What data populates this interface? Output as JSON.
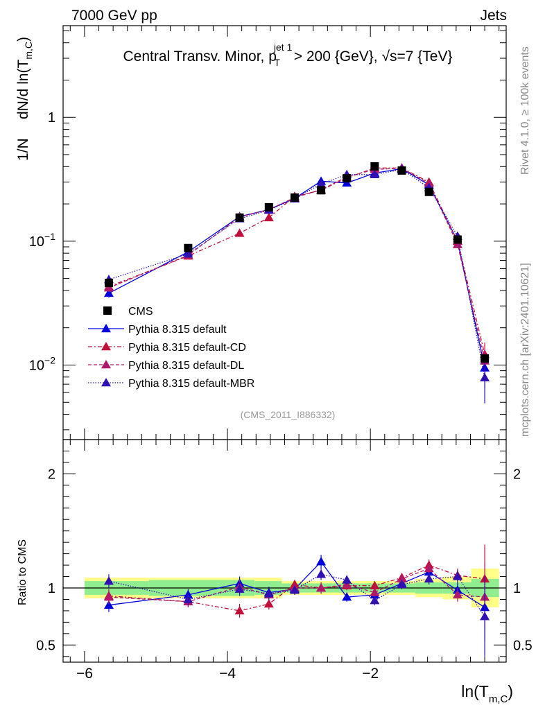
{
  "header": {
    "left": "7000 GeV pp",
    "right": "Jets",
    "title_main": "Central Transv. Minor, p",
    "title_sup": "jet 1",
    "title_sub": "T",
    "title_tail": " > 200 {GeV}, √s=7 {TeV}"
  },
  "side": {
    "rivet": "Rivet 4.1.0, ≥ 100k events",
    "mcplots": "mcplots.cern.ch [arXiv:2401.10621]"
  },
  "analysis_label": "(CMS_2011_I886332)",
  "ylabel_top": {
    "prefix": "1/N",
    "main": "dN/d ln(T",
    "sub": "m,C",
    "close": ")"
  },
  "ylabel_bottom": "Ratio to CMS",
  "xlabel": {
    "main": "ln(T",
    "sub": "m,C",
    "close": ")"
  },
  "chart_data": {
    "type": "line",
    "xlim": [
      -6.3,
      -0.1
    ],
    "ylim_main": [
      0.0025,
      5.5
    ],
    "ylim_ratio": [
      0.35,
      2.3
    ],
    "yscale_main": "log",
    "x_ticks": [
      -6,
      -4,
      -2
    ],
    "x_tick_labels": [
      "−6",
      "−4",
      "−2"
    ],
    "main_y_ticks": [
      {
        "value": 1,
        "base": "1",
        "exp": ""
      },
      {
        "value": 0.1,
        "base": "10",
        "exp": "−1"
      },
      {
        "value": 0.01,
        "base": "10",
        "exp": "−2"
      }
    ],
    "ratio_y_ticks": [
      {
        "value": 2,
        "label": "2"
      },
      {
        "value": 1,
        "label": "1"
      },
      {
        "value": 0.5,
        "label": "0.5"
      }
    ],
    "x": [
      -5.66,
      -4.55,
      -3.83,
      -3.42,
      -3.06,
      -2.69,
      -2.33,
      -1.94,
      -1.56,
      -1.18,
      -0.78,
      -0.4
    ],
    "bin_edges": [
      -6.0,
      -5.1,
      -4.0,
      -3.62,
      -3.24,
      -2.88,
      -2.51,
      -2.14,
      -1.75,
      -1.37,
      -0.99,
      -0.59,
      -0.2
    ],
    "reference": {
      "name": "CMS",
      "values": [
        0.046,
        0.088,
        0.155,
        0.188,
        0.225,
        0.258,
        0.322,
        0.402,
        0.372,
        0.25,
        0.103,
        0.0113
      ],
      "band_inner": [
        0.06,
        0.07,
        0.07,
        0.06,
        0.04,
        0.04,
        0.04,
        0.04,
        0.04,
        0.05,
        0.05,
        0.08
      ],
      "band_outer": [
        0.09,
        0.09,
        0.09,
        0.09,
        0.06,
        0.06,
        0.06,
        0.06,
        0.06,
        0.08,
        0.1,
        0.17
      ]
    },
    "series": [
      {
        "name": "Pythia 8.315 default",
        "color": "#0000dd",
        "dash": "",
        "values": [
          0.038,
          0.082,
          0.158,
          0.18,
          0.222,
          0.305,
          0.295,
          0.355,
          0.385,
          0.285,
          0.1,
          0.0095
        ],
        "errors": [
          0.003,
          0.004,
          0.006,
          0.007,
          0.008,
          0.01,
          0.01,
          0.01,
          0.011,
          0.009,
          0.006,
          0.003
        ],
        "ratio": [
          0.85,
          0.94,
          1.04,
          0.96,
          0.99,
          1.23,
          0.92,
          0.94,
          1.04,
          1.14,
          0.98,
          0.83
        ],
        "ratio_errors": [
          0.06,
          0.05,
          0.06,
          0.05,
          0.04,
          0.06,
          0.04,
          0.04,
          0.04,
          0.05,
          0.06,
          0.3
        ]
      },
      {
        "name": "Pythia 8.315 default-CD",
        "color": "#c0103a",
        "dash": "6,3,2,3",
        "values": [
          0.043,
          0.076,
          0.116,
          0.155,
          0.23,
          0.258,
          0.325,
          0.39,
          0.39,
          0.3,
          0.1,
          0.0122
        ],
        "errors": [
          0.003,
          0.004,
          0.006,
          0.007,
          0.008,
          0.01,
          0.01,
          0.01,
          0.011,
          0.009,
          0.006,
          0.003
        ],
        "ratio": [
          0.93,
          0.88,
          0.8,
          0.86,
          1.03,
          1.0,
          1.02,
          1.02,
          1.09,
          1.2,
          1.11,
          1.08
        ],
        "ratio_errors": [
          0.06,
          0.05,
          0.06,
          0.05,
          0.04,
          0.05,
          0.04,
          0.04,
          0.04,
          0.05,
          0.06,
          0.3
        ]
      },
      {
        "name": "Pythia 8.315 default-DL",
        "color": "#b0186a",
        "dash": "5,3",
        "values": [
          0.042,
          0.077,
          0.157,
          0.18,
          0.225,
          0.26,
          0.33,
          0.38,
          0.388,
          0.293,
          0.094,
          0.0108
        ],
        "errors": [
          0.003,
          0.004,
          0.006,
          0.007,
          0.008,
          0.01,
          0.01,
          0.01,
          0.011,
          0.009,
          0.006,
          0.003
        ],
        "ratio": [
          0.92,
          0.88,
          1.01,
          0.94,
          1.0,
          1.0,
          1.03,
          0.96,
          1.08,
          1.17,
          0.94,
          0.92
        ],
        "ratio_errors": [
          0.06,
          0.05,
          0.06,
          0.05,
          0.04,
          0.05,
          0.04,
          0.04,
          0.04,
          0.05,
          0.06,
          0.3
        ]
      },
      {
        "name": "Pythia 8.315 default-MBR",
        "color": "#3010b0",
        "dash": "1.5,2",
        "values": [
          0.049,
          0.079,
          0.152,
          0.178,
          0.22,
          0.29,
          0.345,
          0.345,
          0.38,
          0.27,
          0.11,
          0.0079
        ],
        "errors": [
          0.003,
          0.004,
          0.006,
          0.007,
          0.008,
          0.01,
          0.01,
          0.01,
          0.011,
          0.009,
          0.006,
          0.003
        ],
        "ratio": [
          1.06,
          0.9,
          0.99,
          0.95,
          0.98,
          1.12,
          1.07,
          0.89,
          1.03,
          1.08,
          1.1,
          0.75
        ],
        "ratio_errors": [
          0.06,
          0.05,
          0.06,
          0.05,
          0.04,
          0.05,
          0.04,
          0.04,
          0.04,
          0.05,
          0.06,
          0.35
        ]
      }
    ]
  }
}
